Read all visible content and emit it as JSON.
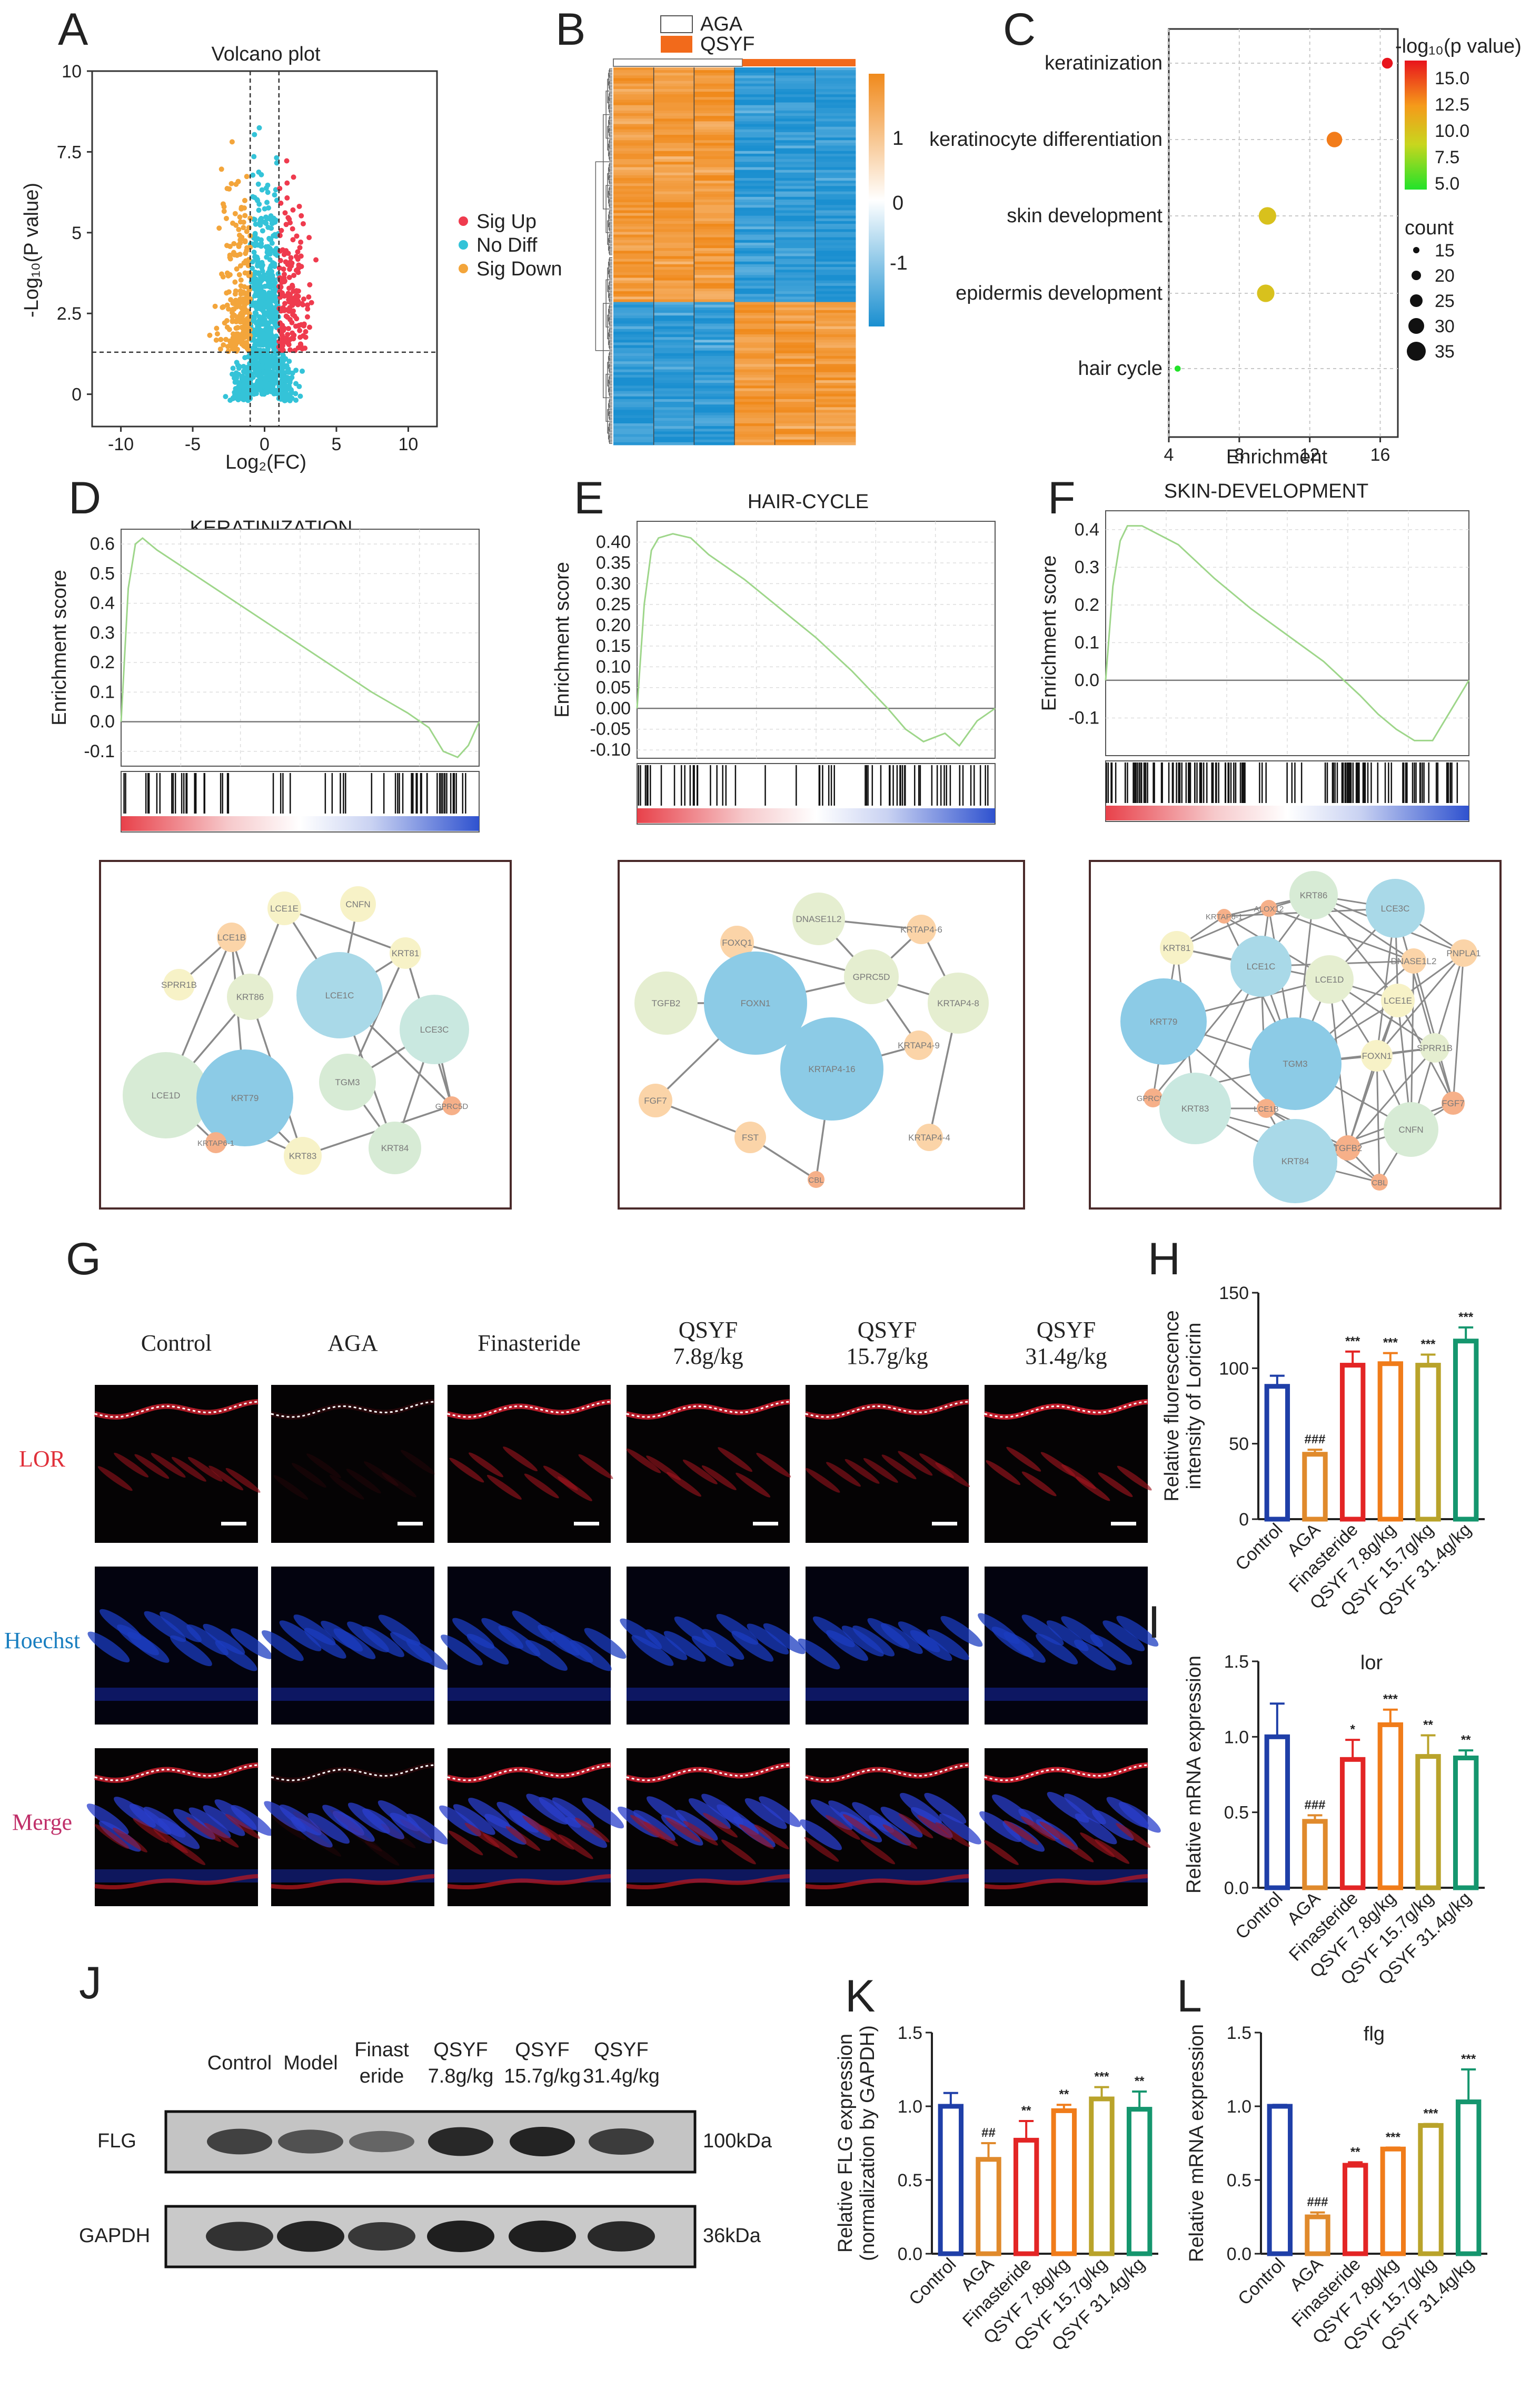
{
  "panels": {
    "A": {
      "label": "A",
      "title": "Volcano plot",
      "xlabel": "Log₂(FC)",
      "ylabel": "-Log₁₀(P value)",
      "xticks": [
        "-10",
        "-5",
        "0",
        "5",
        "10"
      ],
      "yticks": [
        "0",
        "2.5",
        "5",
        "7.5",
        "10"
      ],
      "legend": [
        "Sig Up",
        "No Diff",
        "Sig Down"
      ],
      "colors": {
        "up": "#ef3b4e",
        "nodiff": "#34c3d8",
        "down": "#f3a53b"
      }
    },
    "B": {
      "label": "B",
      "legend": [
        "AGA",
        "QSYF"
      ],
      "colorbar_ticks": [
        "1",
        "0",
        "-1"
      ],
      "colors": {
        "high": "#f08a1c",
        "low": "#1a8fd0",
        "qsyf": "#f26a1b"
      }
    },
    "C": {
      "label": "C",
      "xlabel": "Enrichment",
      "xticks": [
        "4",
        "8",
        "12",
        "16"
      ],
      "terms": [
        "keratinization",
        "keratinocyte differentiation",
        "skin development",
        "epidermis development",
        "hair cycle"
      ],
      "colorbar_title": "-log₁₀(p value)",
      "colorbar_ticks": [
        "15.0",
        "12.5",
        "10.0",
        "7.5",
        "5.0"
      ],
      "size_title": "count",
      "size_ticks": [
        "15",
        "20",
        "25",
        "30",
        "35"
      ]
    },
    "D": {
      "label": "D",
      "title": "KERATINIZATION",
      "ylabel": "Enrichment score",
      "yticks": [
        "0.6",
        "0.5",
        "0.4",
        "0.3",
        "0.2",
        "0.1",
        "0.0",
        "-0.1"
      ]
    },
    "E": {
      "label": "E",
      "title": "HAIR-CYCLE",
      "ylabel": "Enrichment score",
      "yticks": [
        "0.40",
        "0.35",
        "0.30",
        "0.25",
        "0.20",
        "0.15",
        "0.10",
        "0.05",
        "0.00",
        "-0.05",
        "-0.10"
      ]
    },
    "F": {
      "label": "F",
      "title": "SKIN-DEVELOPMENT",
      "ylabel": "Enrichment score",
      "yticks": [
        "0.4",
        "0.3",
        "0.2",
        "0.1",
        "0.0",
        "-0.1"
      ]
    },
    "G": {
      "label": "G",
      "columns": [
        "Control",
        "AGA",
        "Finasteride",
        "QSYF\n7.8g/kg",
        "QSYF\n15.7g/kg",
        "QSYF\n31.4g/kg"
      ],
      "rows": [
        "LOR",
        "Hoechst",
        "Merge"
      ]
    },
    "H": {
      "label": "H",
      "ylabel": "Relative fluorescence\nintensity of Loricrin",
      "yticks": [
        "0",
        "50",
        "100",
        "150"
      ]
    },
    "I": {
      "label": "I",
      "title": "lor",
      "ylabel": "Relative mRNA expression",
      "yticks": [
        "0.0",
        "0.5",
        "1.0",
        "1.5"
      ]
    },
    "J": {
      "label": "J",
      "lanes": [
        "Control",
        "Model",
        "Finast\neride",
        "QSYF\n7.8g/kg",
        "QSYF\n15.7g/kg",
        "QSYF\n31.4g/kg"
      ],
      "rows": [
        "FLG",
        "GAPDH"
      ],
      "sizes": [
        "100kDa",
        "36kDa"
      ]
    },
    "K": {
      "label": "K",
      "ylabel": "Relative FLG expression\n(normalization by GAPDH)",
      "yticks": [
        "0.0",
        "0.5",
        "1.0",
        "1.5"
      ]
    },
    "L": {
      "label": "L",
      "title": "flg",
      "ylabel": "Relative mRNA expression",
      "yticks": [
        "0.0",
        "0.5",
        "1.0",
        "1.5"
      ]
    }
  },
  "networks": {
    "D": {
      "nodes": [
        {
          "id": "LCE1E",
          "c": "#f7f2c7"
        },
        {
          "id": "CNFN",
          "c": "#f7f2c7"
        },
        {
          "id": "LCE1B",
          "c": "#fbd4a8"
        },
        {
          "id": "KRT81",
          "c": "#f7f2c7"
        },
        {
          "id": "SPRR1B",
          "c": "#f7f2c7"
        },
        {
          "id": "KRT86",
          "c": "#e5eed0"
        },
        {
          "id": "LCE1C",
          "c": "#a9d9e8"
        },
        {
          "id": "LCE3C",
          "c": "#c9e8e0"
        },
        {
          "id": "LCE1D",
          "c": "#d7ebd5"
        },
        {
          "id": "KRT79",
          "c": "#8ccbe6"
        },
        {
          "id": "TGM3",
          "c": "#d7ebd5"
        },
        {
          "id": "GPRC5D",
          "c": "#f6b089"
        },
        {
          "id": "KRTAP6-1",
          "c": "#f6b089"
        },
        {
          "id": "KRT83",
          "c": "#f7f2c7"
        },
        {
          "id": "KRT84",
          "c": "#d7ebd5"
        }
      ]
    },
    "E": {
      "nodes": [
        {
          "id": "DNASE1L2",
          "c": "#e5eed0"
        },
        {
          "id": "FOXQ1",
          "c": "#fbd4a8"
        },
        {
          "id": "KRTAP4-6",
          "c": "#fbd4a8"
        },
        {
          "id": "TGFB2",
          "c": "#e5eed0"
        },
        {
          "id": "FOXN1",
          "c": "#8ccbe6"
        },
        {
          "id": "GPRC5D",
          "c": "#e5eed0"
        },
        {
          "id": "KRTAP4-8",
          "c": "#e5eed0"
        },
        {
          "id": "KRTAP4-16",
          "c": "#8ccbe6"
        },
        {
          "id": "KRTAP4-9",
          "c": "#fbd4a8"
        },
        {
          "id": "FGF7",
          "c": "#fbd4a8"
        },
        {
          "id": "FST",
          "c": "#fbd4a8"
        },
        {
          "id": "KRTAP4-4",
          "c": "#fbd4a8"
        },
        {
          "id": "CBL",
          "c": "#f6b089"
        }
      ]
    },
    "F": {
      "nodes": [
        {
          "id": "ALOX12",
          "c": "#f6b089"
        },
        {
          "id": "KRT86",
          "c": "#d7ebd5"
        },
        {
          "id": "LCE3C",
          "c": "#a9d9e8"
        },
        {
          "id": "KRTAP6-1",
          "c": "#f6b089"
        },
        {
          "id": "KRT81",
          "c": "#f7f2c7"
        },
        {
          "id": "LCE1C",
          "c": "#a9d9e8"
        },
        {
          "id": "LCE1D",
          "c": "#e5eed0"
        },
        {
          "id": "DNASE1L2",
          "c": "#fbd4a8"
        },
        {
          "id": "PNPLA1",
          "c": "#fbd4a8"
        },
        {
          "id": "LCE1E",
          "c": "#f7f2c7"
        },
        {
          "id": "KRT79",
          "c": "#8ccbe6"
        },
        {
          "id": "GPRC5D",
          "c": "#f6b089"
        },
        {
          "id": "TGM3",
          "c": "#8ccbe6"
        },
        {
          "id": "FOXN1",
          "c": "#f7f2c7"
        },
        {
          "id": "SPRR1B",
          "c": "#e5eed0"
        },
        {
          "id": "FGF7",
          "c": "#f6b089"
        },
        {
          "id": "KRT83",
          "c": "#c9e8e0"
        },
        {
          "id": "LCE1B",
          "c": "#f6b089"
        },
        {
          "id": "CNFN",
          "c": "#d7ebd5"
        },
        {
          "id": "KRT84",
          "c": "#a9d9e8"
        },
        {
          "id": "TGFB2",
          "c": "#f6b089"
        },
        {
          "id": "CBL",
          "c": "#f6b089"
        }
      ]
    }
  },
  "chart_data": [
    {
      "panel": "A",
      "type": "scatter",
      "title": "Volcano plot",
      "xlabel": "Log₂(FC)",
      "ylabel": "-Log₁₀(P value)",
      "xlim": [
        -12,
        12
      ],
      "ylim": [
        -1,
        10
      ],
      "thresholds": {
        "log2fc": [
          -1,
          1
        ],
        "neg_log10_p": 1.3
      },
      "series": [
        {
          "name": "Sig Up"
        },
        {
          "name": "No Diff"
        },
        {
          "name": "Sig Down"
        }
      ]
    },
    {
      "panel": "C",
      "type": "scatter",
      "xlabel": "Enrichment",
      "xlim": [
        4,
        17
      ],
      "points": [
        {
          "term": "keratinization",
          "enrichment": 16.4,
          "neg_log10_p": 16.0,
          "count": 15
        },
        {
          "term": "keratinocyte differentiation",
          "enrichment": 13.4,
          "neg_log10_p": 13.0,
          "count": 20
        },
        {
          "term": "skin development",
          "enrichment": 9.6,
          "neg_log10_p": 10.0,
          "count": 22
        },
        {
          "term": "epidermis development",
          "enrichment": 9.5,
          "neg_log10_p": 10.0,
          "count": 22
        },
        {
          "term": "hair cycle",
          "enrichment": 4.5,
          "neg_log10_p": 5.0,
          "count": 10
        }
      ]
    },
    {
      "panel": "D",
      "type": "line",
      "title": "KERATINIZATION",
      "ylabel": "Enrichment score",
      "ylim": [
        -0.15,
        0.65
      ],
      "x": [
        0,
        0.02,
        0.04,
        0.06,
        0.1,
        0.2,
        0.3,
        0.4,
        0.5,
        0.6,
        0.7,
        0.8,
        0.86,
        0.9,
        0.94,
        0.97,
        1.0
      ],
      "y": [
        0,
        0.45,
        0.6,
        0.62,
        0.58,
        0.5,
        0.42,
        0.34,
        0.26,
        0.18,
        0.1,
        0.03,
        -0.02,
        -0.1,
        -0.12,
        -0.08,
        0.0
      ]
    },
    {
      "panel": "E",
      "type": "line",
      "title": "HAIR-CYCLE",
      "ylabel": "Enrichment score",
      "ylim": [
        -0.12,
        0.45
      ],
      "x": [
        0,
        0.02,
        0.04,
        0.06,
        0.1,
        0.15,
        0.2,
        0.3,
        0.4,
        0.5,
        0.6,
        0.7,
        0.75,
        0.8,
        0.86,
        0.9,
        0.95,
        1.0
      ],
      "y": [
        0,
        0.25,
        0.38,
        0.41,
        0.42,
        0.41,
        0.37,
        0.31,
        0.24,
        0.17,
        0.09,
        0.0,
        -0.05,
        -0.08,
        -0.06,
        -0.09,
        -0.03,
        0.0
      ]
    },
    {
      "panel": "F",
      "type": "line",
      "title": "SKIN-DEVELOPMENT",
      "ylabel": "Enrichment score",
      "ylim": [
        -0.2,
        0.45
      ],
      "x": [
        0,
        0.02,
        0.04,
        0.06,
        0.1,
        0.2,
        0.3,
        0.4,
        0.5,
        0.6,
        0.7,
        0.75,
        0.8,
        0.85,
        0.9,
        0.95,
        1.0
      ],
      "y": [
        0,
        0.25,
        0.37,
        0.41,
        0.41,
        0.36,
        0.27,
        0.19,
        0.12,
        0.05,
        -0.04,
        -0.09,
        -0.13,
        -0.16,
        -0.16,
        -0.08,
        0.0
      ]
    },
    {
      "panel": "H",
      "type": "bar",
      "ylabel": "Relative fluorescence\nintensity of Loricrin",
      "ylim": [
        0,
        150
      ],
      "categories": [
        "Control",
        "AGA",
        "Finasteride",
        "QSYF 7.8g/kg",
        "QSYF 15.7g/kg",
        "QSYF 31.4g/kg"
      ],
      "values": [
        88,
        43,
        102,
        103,
        102,
        118
      ],
      "errors": [
        7,
        3,
        9,
        7,
        7,
        9
      ],
      "annotations": [
        "",
        "###",
        "***",
        "***",
        "***",
        "***"
      ]
    },
    {
      "panel": "I",
      "type": "bar",
      "title": "lor",
      "ylabel": "Relative mRNA expression",
      "ylim": [
        0,
        1.5
      ],
      "categories": [
        "Control",
        "AGA",
        "Finasteride",
        "QSYF 7.8g/kg",
        "QSYF 15.7g/kg",
        "QSYF 31.4g/kg"
      ],
      "values": [
        1.0,
        0.44,
        0.85,
        1.08,
        0.87,
        0.86
      ],
      "errors": [
        0.22,
        0.04,
        0.13,
        0.1,
        0.14,
        0.05
      ],
      "annotations": [
        "",
        "###",
        "*",
        "***",
        "**",
        "**"
      ]
    },
    {
      "panel": "K",
      "type": "bar",
      "ylabel": "Relative FLG expression\n(normalization by GAPDH)",
      "ylim": [
        0,
        1.5
      ],
      "categories": [
        "Control",
        "AGA",
        "Finasteride",
        "QSYF 7.8g/kg",
        "QSYF 15.7g/kg",
        "QSYF 31.4g/kg"
      ],
      "values": [
        1.0,
        0.64,
        0.77,
        0.97,
        1.05,
        0.98
      ],
      "errors": [
        0.09,
        0.11,
        0.13,
        0.04,
        0.08,
        0.12
      ],
      "annotations": [
        "",
        "##",
        "**",
        "**",
        "***",
        "**"
      ]
    },
    {
      "panel": "L",
      "type": "bar",
      "title": "flg",
      "ylabel": "Relative mRNA expression",
      "ylim": [
        0,
        1.5
      ],
      "categories": [
        "Control",
        "AGA",
        "Finasteride",
        "QSYF 7.8g/kg",
        "QSYF 15.7g/kg",
        "QSYF 31.4g/kg"
      ],
      "values": [
        1.0,
        0.25,
        0.6,
        0.71,
        0.87,
        1.03
      ],
      "errors": [
        0.01,
        0.03,
        0.02,
        0.01,
        0.01,
        0.22
      ],
      "annotations": [
        "",
        "###",
        "**",
        "***",
        "***",
        "***"
      ]
    }
  ],
  "bar_colors": [
    "#1f3fa8",
    "#e08a2c",
    "#e32525",
    "#f07c1a",
    "#b9a32b",
    "#15966e"
  ]
}
